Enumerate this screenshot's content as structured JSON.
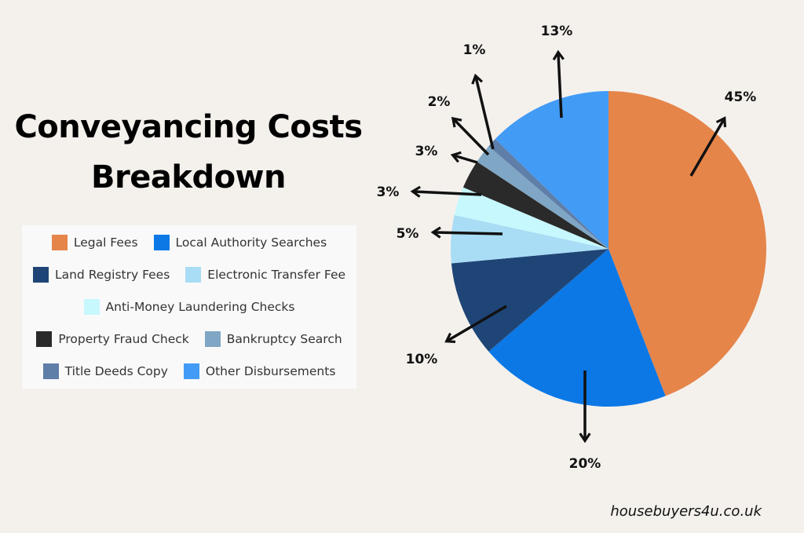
{
  "title_line1": "Conveyancing Costs",
  "title_line2": "Breakdown",
  "credit": "housebuyers4u.co.uk",
  "chart_data": {
    "type": "pie",
    "legend_position": "left",
    "start": "top, clockwise",
    "slices": [
      {
        "name": "Legal Fees",
        "value": 45,
        "label": "45%",
        "color": "#e5854a"
      },
      {
        "name": "Local Authority Searches",
        "value": 20,
        "label": "20%",
        "color": "#0b78e6"
      },
      {
        "name": "Land Registry Fees",
        "value": 10,
        "label": "10%",
        "color": "#1f4577"
      },
      {
        "name": "Electronic Transfer Fee",
        "value": 5,
        "label": "5%",
        "color": "#a9dcf5"
      },
      {
        "name": "Anti-Money Laundering Checks",
        "value": 3,
        "label": "3%",
        "color": "#c6f8fd"
      },
      {
        "name": "Property Fraud Check",
        "value": 3,
        "label": "3%",
        "color": "#2a2a2a"
      },
      {
        "name": "Bankruptcy Search",
        "value": 2,
        "label": "2%",
        "color": "#7fa6c4"
      },
      {
        "name": "Title Deeds Copy",
        "value": 1,
        "label": "1%",
        "color": "#5f7ea8"
      },
      {
        "name": "Other Disbursements",
        "value": 13,
        "label": "13%",
        "color": "#429bf5"
      }
    ]
  }
}
